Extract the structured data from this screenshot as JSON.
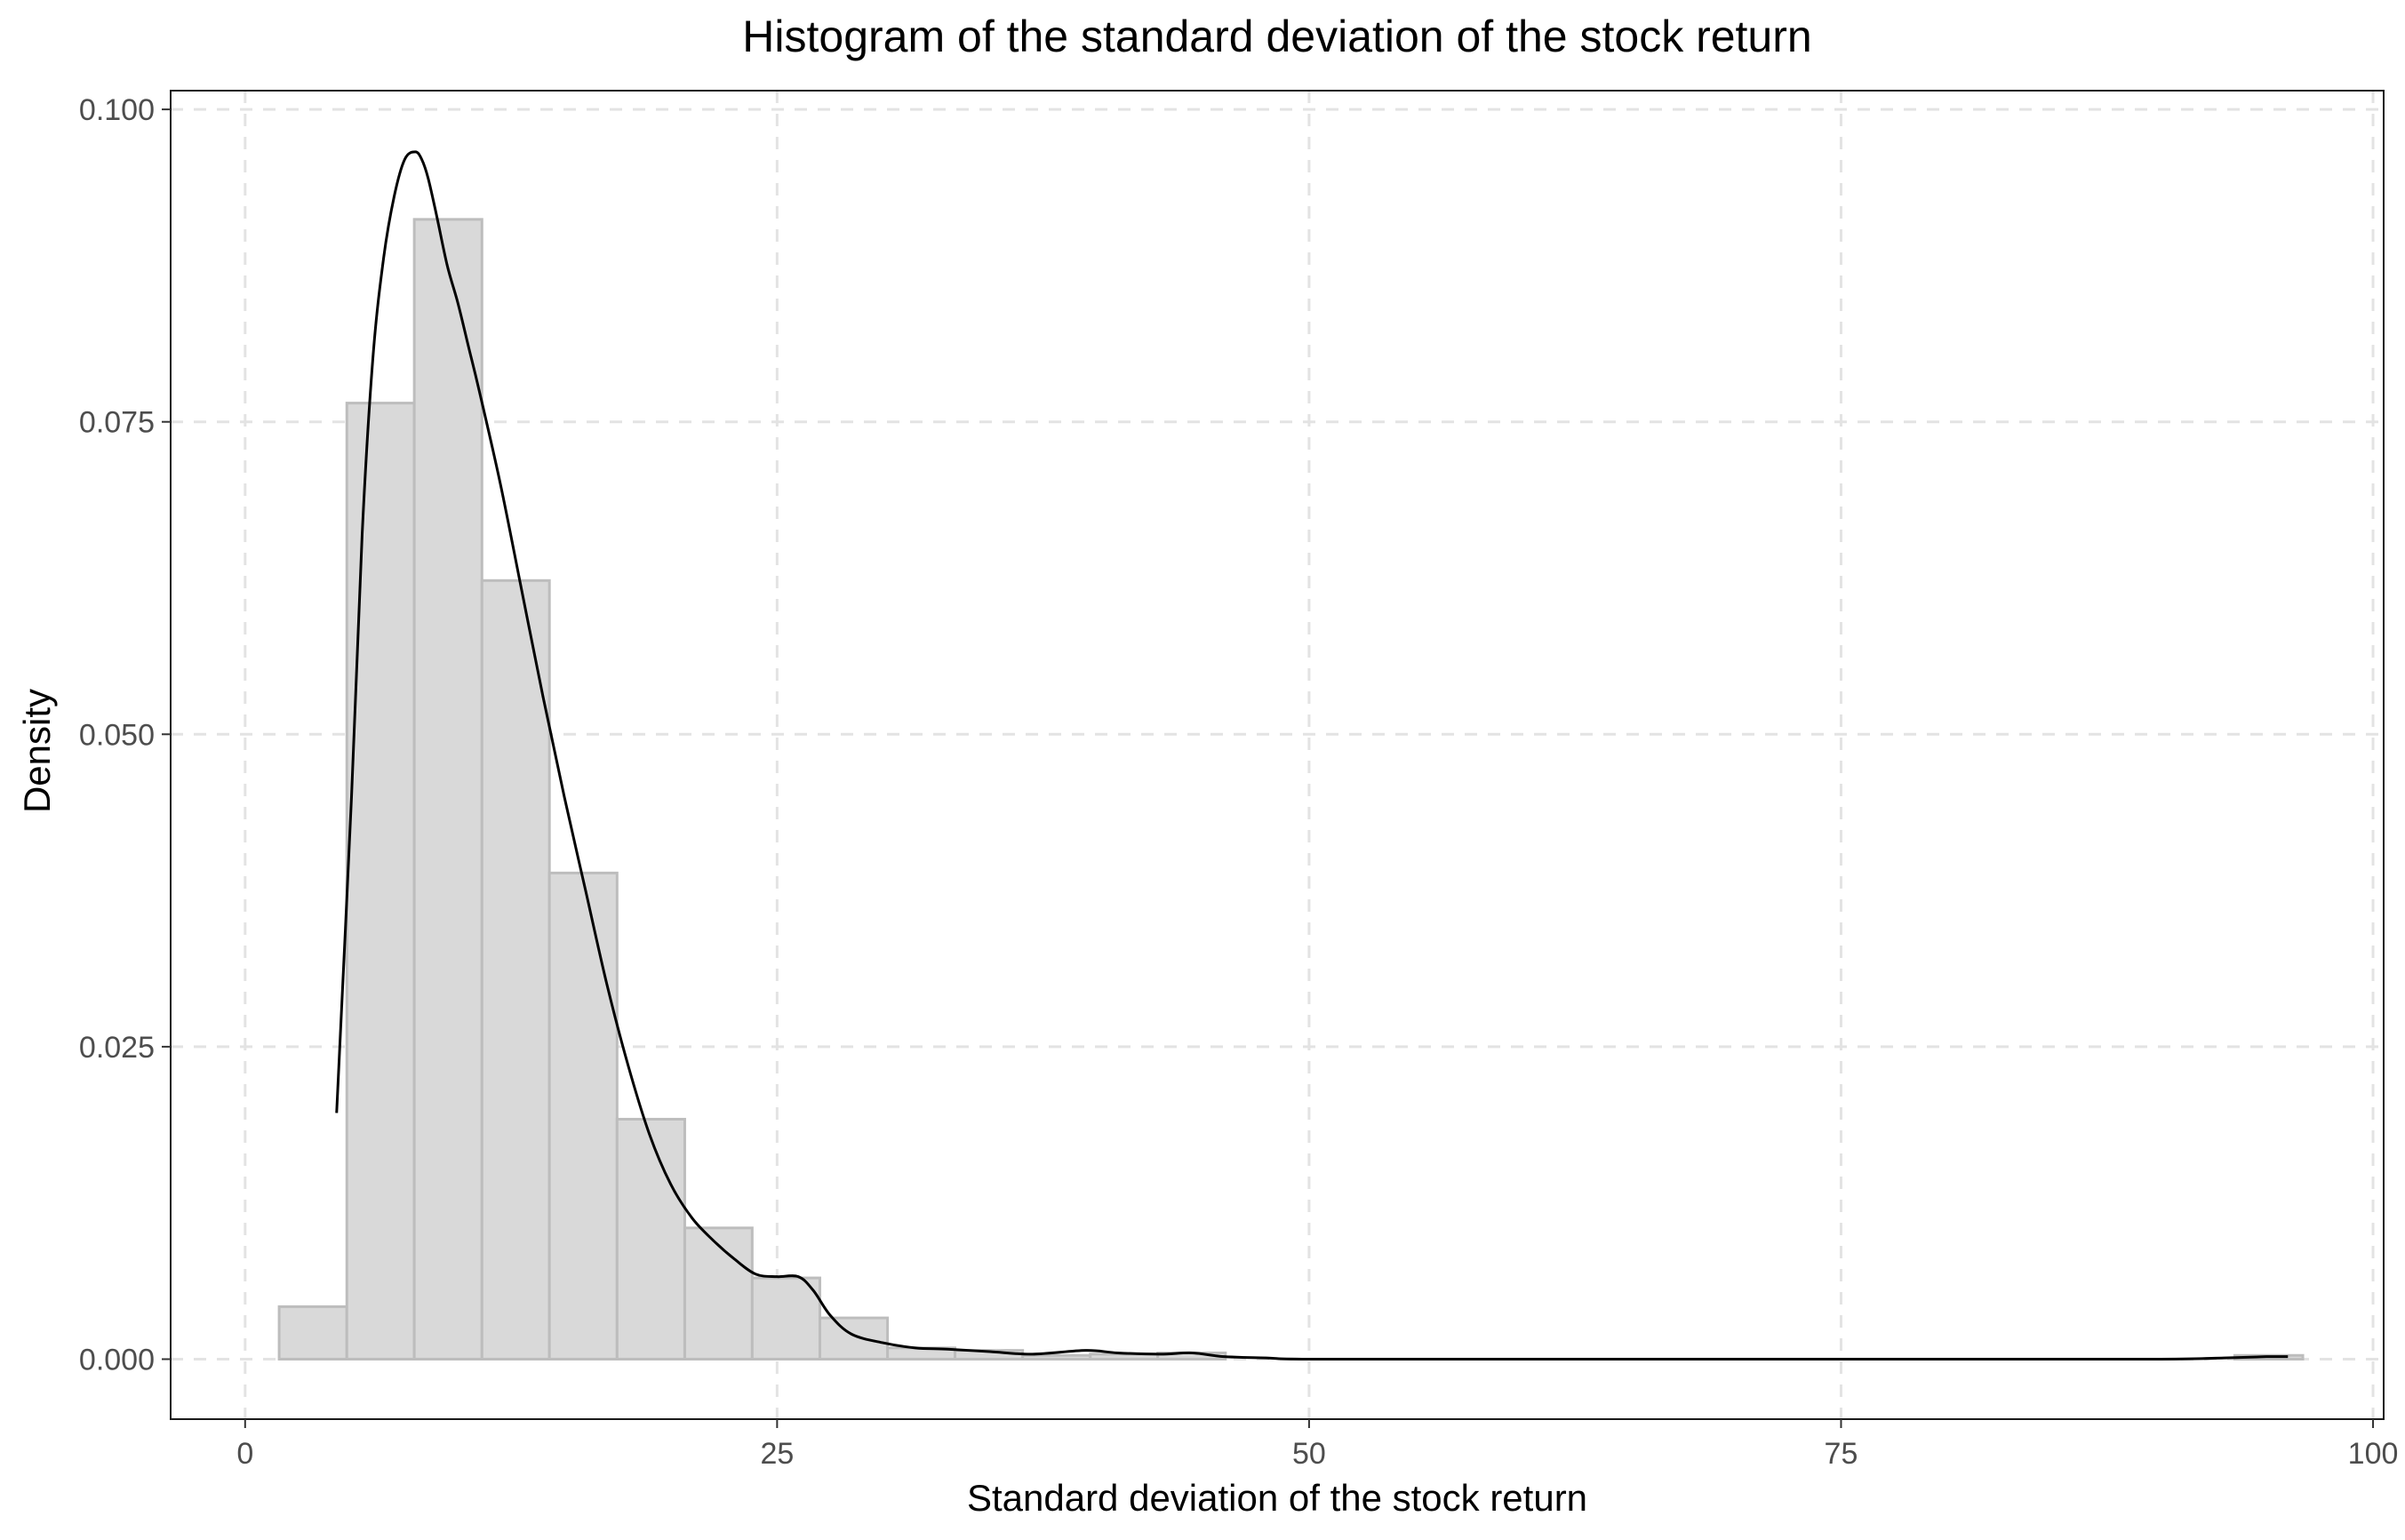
{
  "chart_data": {
    "type": "bar",
    "title": "Histogram of the standard deviation of the stock return",
    "xlabel": "Standard deviation of the stock return",
    "ylabel": "Density",
    "xlim": [
      -3.5,
      100.5
    ],
    "ylim": [
      -0.0048,
      0.1015
    ],
    "x_ticks": [
      0,
      25,
      50,
      75,
      100
    ],
    "x_tick_labels": [
      "0",
      "25",
      "50",
      "75",
      "100"
    ],
    "y_ticks": [
      0.0,
      0.025,
      0.05,
      0.075,
      0.1
    ],
    "y_tick_labels": [
      "0.000",
      "0.025",
      "0.050",
      "0.075",
      "0.100"
    ],
    "grid": true,
    "legend": "none",
    "bin_width": 3.176,
    "bins": [
      {
        "x0": 1.6,
        "x1": 4.78,
        "density": 0.0042
      },
      {
        "x0": 4.78,
        "x1": 7.95,
        "density": 0.0765
      },
      {
        "x0": 7.95,
        "x1": 11.13,
        "density": 0.0912
      },
      {
        "x0": 11.13,
        "x1": 14.3,
        "density": 0.0623
      },
      {
        "x0": 14.3,
        "x1": 17.48,
        "density": 0.0389
      },
      {
        "x0": 17.48,
        "x1": 20.66,
        "density": 0.0192
      },
      {
        "x0": 20.66,
        "x1": 23.83,
        "density": 0.0105
      },
      {
        "x0": 23.83,
        "x1": 27.01,
        "density": 0.0065
      },
      {
        "x0": 27.01,
        "x1": 30.19,
        "density": 0.0033
      },
      {
        "x0": 30.19,
        "x1": 33.36,
        "density": 0.0009
      },
      {
        "x0": 33.36,
        "x1": 36.54,
        "density": 0.0007
      },
      {
        "x0": 36.54,
        "x1": 39.72,
        "density": 0.0003
      },
      {
        "x0": 39.72,
        "x1": 42.89,
        "density": 0.0004
      },
      {
        "x0": 42.89,
        "x1": 46.07,
        "density": 0.0005
      },
      {
        "x0": 93.5,
        "x1": 96.7,
        "density": 0.0003
      }
    ],
    "density_curve": {
      "x": [
        4.3,
        5.0,
        5.5,
        6.0,
        6.5,
        7.0,
        7.5,
        8.0,
        8.3,
        8.6,
        9.0,
        9.5,
        10.0,
        10.5,
        11.0,
        12.0,
        13.0,
        14.0,
        15.0,
        16.0,
        17.0,
        18.0,
        19.0,
        20.0,
        21.0,
        22.0,
        23.0,
        24.0,
        25.0,
        26.0,
        26.7,
        27.5,
        28.5,
        30.0,
        31.5,
        33.0,
        35.0,
        37.0,
        39.5,
        41.0,
        43.0,
        44.5,
        46.0,
        48.0,
        50.0,
        60.0,
        70.0,
        80.0,
        90.0,
        93.0,
        95.0,
        96.0
      ],
      "y": [
        0.0197,
        0.045,
        0.066,
        0.08,
        0.088,
        0.093,
        0.096,
        0.0966,
        0.096,
        0.0945,
        0.0915,
        0.0875,
        0.0845,
        0.081,
        0.0775,
        0.07,
        0.0615,
        0.053,
        0.045,
        0.0375,
        0.03,
        0.0235,
        0.018,
        0.014,
        0.0113,
        0.0095,
        0.008,
        0.0068,
        0.0066,
        0.0066,
        0.0055,
        0.0035,
        0.002,
        0.0013,
        0.0009,
        0.0008,
        0.0006,
        0.0004,
        0.0007,
        0.0005,
        0.0004,
        0.0005,
        0.0002,
        0.0001,
        0.0,
        0.0,
        0.0,
        0.0,
        0.0,
        0.0001,
        0.0002,
        0.0002
      ]
    },
    "colors": {
      "bar_fill": "#d9d9d9",
      "bar_stroke": "#bdbdbd",
      "curve": "#000000",
      "grid": "#e3e3e3",
      "axis_text": "#4d4d4d",
      "panel_border": "#1a1a1a"
    }
  }
}
